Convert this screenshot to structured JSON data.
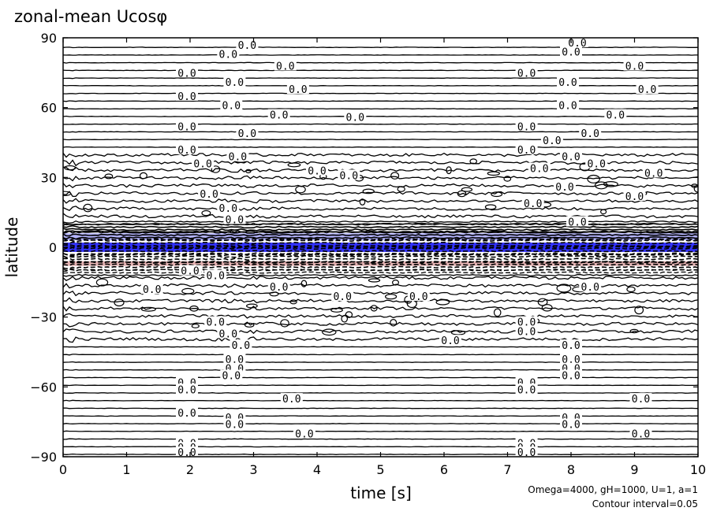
{
  "chart_data": {
    "type": "contour",
    "title": "zonal-mean Ucosφ",
    "xlabel": "time [s]",
    "ylabel": "latitude",
    "xlim": [
      0,
      10
    ],
    "ylim": [
      -90,
      90
    ],
    "xticks": [
      0,
      1,
      2,
      3,
      4,
      5,
      6,
      7,
      8,
      9,
      10
    ],
    "yticks": [
      -90,
      -60,
      -30,
      0,
      30,
      60,
      90
    ],
    "ytick_labels": [
      "−90",
      "−60",
      "−30",
      "0",
      "30",
      "60",
      "90"
    ],
    "contour_interval": 0.05,
    "contour_label": "0.0",
    "notes": [
      "Omega=4000, gH=1000, U=1, a=1",
      "Contour interval=0.05"
    ],
    "colors": {
      "negative_fill": "#3333ff",
      "negative_light": "#b4b4ff",
      "positive_fill": "#e6b4b4"
    },
    "label_sites": [
      [
        2.9,
        87
      ],
      [
        2.6,
        83
      ],
      [
        3.5,
        78
      ],
      [
        8.0,
        84
      ],
      [
        8.1,
        88
      ],
      [
        9.0,
        78
      ],
      [
        1.95,
        75
      ],
      [
        2.7,
        71
      ],
      [
        3.7,
        68
      ],
      [
        7.3,
        75
      ],
      [
        7.95,
        71
      ],
      [
        9.2,
        68
      ],
      [
        1.95,
        65
      ],
      [
        2.65,
        61
      ],
      [
        3.4,
        57
      ],
      [
        4.6,
        56
      ],
      [
        7.95,
        61
      ],
      [
        8.7,
        57
      ],
      [
        1.95,
        52
      ],
      [
        2.9,
        49
      ],
      [
        7.3,
        52
      ],
      [
        7.7,
        46
      ],
      [
        8.3,
        49
      ],
      [
        1.95,
        42
      ],
      [
        2.75,
        39
      ],
      [
        7.3,
        42
      ],
      [
        8.0,
        39
      ],
      [
        8.4,
        36
      ],
      [
        2.2,
        36
      ],
      [
        4.0,
        33
      ],
      [
        4.5,
        31
      ],
      [
        7.5,
        34
      ],
      [
        9.3,
        32
      ],
      [
        2.3,
        23
      ],
      [
        2.6,
        17
      ],
      [
        2.7,
        12
      ],
      [
        7.4,
        19
      ],
      [
        7.9,
        26
      ],
      [
        8.1,
        11
      ],
      [
        9.0,
        22
      ],
      [
        2.0,
        -10
      ],
      [
        2.4,
        -12
      ],
      [
        1.4,
        -18
      ],
      [
        3.4,
        -17
      ],
      [
        4.4,
        -21
      ],
      [
        5.6,
        -21
      ],
      [
        8.3,
        -17
      ],
      [
        2.4,
        -32
      ],
      [
        2.6,
        -37
      ],
      [
        2.8,
        -42
      ],
      [
        6.1,
        -40
      ],
      [
        7.3,
        -32
      ],
      [
        7.3,
        -36
      ],
      [
        8.0,
        -42
      ],
      [
        2.7,
        -48
      ],
      [
        2.7,
        -52
      ],
      [
        2.65,
        -55
      ],
      [
        8.0,
        -48
      ],
      [
        8.0,
        -52
      ],
      [
        8.0,
        -55
      ],
      [
        1.95,
        -58
      ],
      [
        1.95,
        -61
      ],
      [
        3.6,
        -65
      ],
      [
        7.3,
        -58
      ],
      [
        7.3,
        -61
      ],
      [
        9.1,
        -65
      ],
      [
        1.95,
        -71
      ],
      [
        2.7,
        -73
      ],
      [
        2.7,
        -76
      ],
      [
        3.8,
        -80
      ],
      [
        8.0,
        -73
      ],
      [
        8.0,
        -76
      ],
      [
        9.1,
        -80
      ],
      [
        1.95,
        -84
      ],
      [
        1.95,
        -86
      ],
      [
        1.95,
        -88
      ],
      [
        7.3,
        -84
      ],
      [
        7.3,
        -86
      ],
      [
        7.3,
        -88
      ]
    ]
  }
}
